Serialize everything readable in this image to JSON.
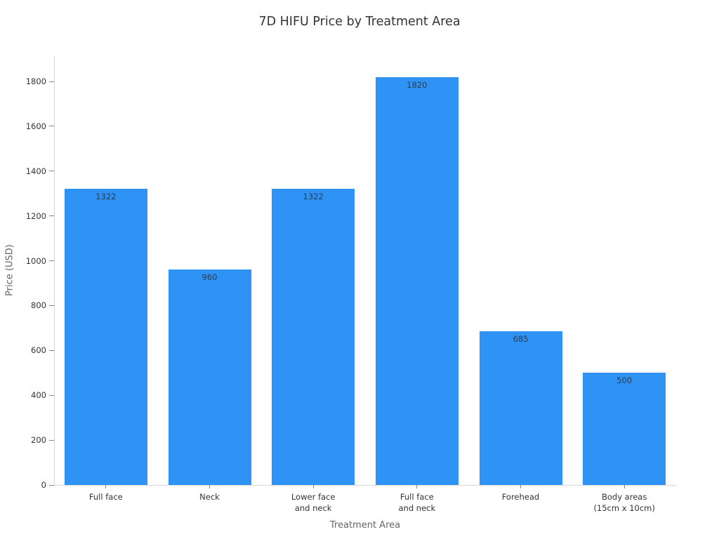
{
  "chart_data": {
    "type": "bar",
    "title": "7D HIFU Price by Treatment Area",
    "xlabel": "Treatment Area",
    "ylabel": "Price (USD)",
    "categories": [
      "Full face",
      "Neck",
      "Lower face\nand neck",
      "Full face\nand neck",
      "Forehead",
      "Body areas\n(15cm x 10cm)"
    ],
    "values": [
      1322,
      960,
      1322,
      1820,
      685,
      500
    ],
    "value_labels": [
      "1322",
      "960",
      "1322",
      "1820",
      "685",
      "500"
    ],
    "yticks": [
      0,
      200,
      400,
      600,
      800,
      1000,
      1200,
      1400,
      1600,
      1800
    ],
    "ylim": [
      0,
      1913
    ],
    "bar_color": "#2e93f5",
    "value_label_color": "#2b3d4f",
    "grid": false,
    "legend": "none",
    "series_count": 1
  }
}
